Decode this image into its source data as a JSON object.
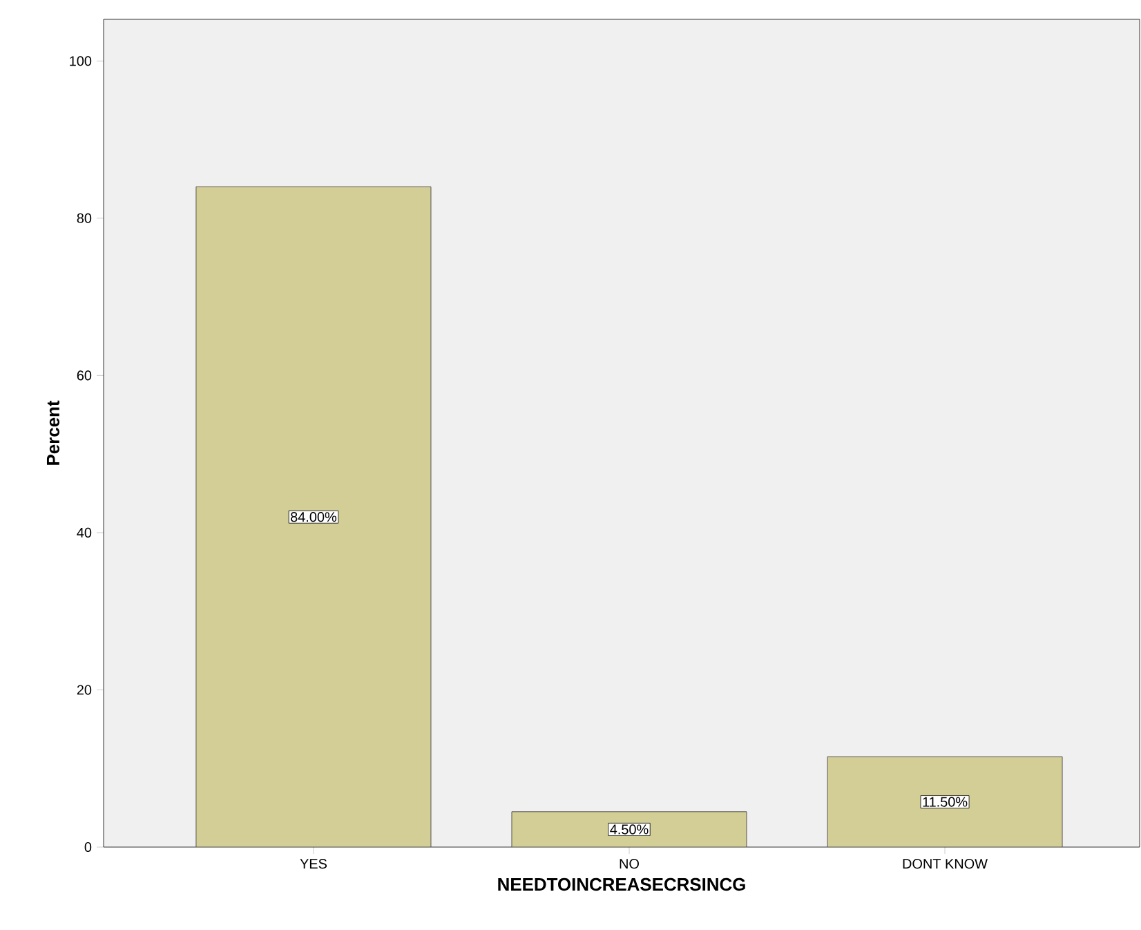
{
  "chart_data": {
    "type": "bar",
    "xlabel": "NEEDTOINCREASECRSINCG",
    "ylabel": "Percent",
    "categories": [
      "YES",
      "NO",
      "DONT KNOW"
    ],
    "values": [
      84,
      4.5,
      11.5
    ],
    "value_labels": [
      "84.00%",
      "4.50%",
      "11.50%"
    ],
    "color": "#d3ce96",
    "ylim": [
      0,
      105.3
    ],
    "yticks": [
      0,
      20,
      40,
      60,
      80,
      100
    ]
  }
}
